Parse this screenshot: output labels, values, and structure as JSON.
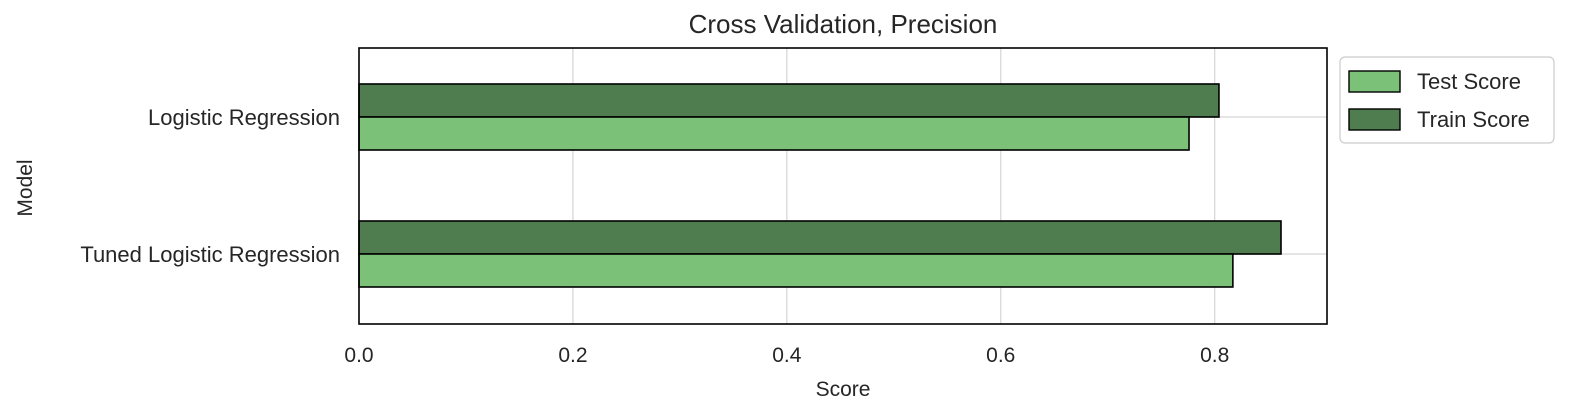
{
  "chart_data": {
    "type": "bar",
    "orientation": "horizontal",
    "title": "Cross Validation, Precision",
    "xlabel": "Score",
    "ylabel": "Model",
    "categories": [
      "Logistic Regression",
      "Tuned Logistic Regression"
    ],
    "xlim": [
      0.0,
      0.905
    ],
    "xticks": [
      0.0,
      0.2,
      0.4,
      0.6,
      0.8
    ],
    "xtick_labels": [
      "0.0",
      "0.2",
      "0.4",
      "0.6",
      "0.8"
    ],
    "grid": true,
    "legend_position": "outside-right-top",
    "series": [
      {
        "name": "Test Score",
        "values": [
          0.776,
          0.817
        ],
        "color": "#7cc178"
      },
      {
        "name": "Train Score",
        "values": [
          0.804,
          0.862
        ],
        "color": "#507d4f"
      }
    ],
    "colors": {
      "grid": "#d5d5d5",
      "frame": "#000000",
      "bar_edge": "#000000",
      "text": "#262626"
    }
  }
}
